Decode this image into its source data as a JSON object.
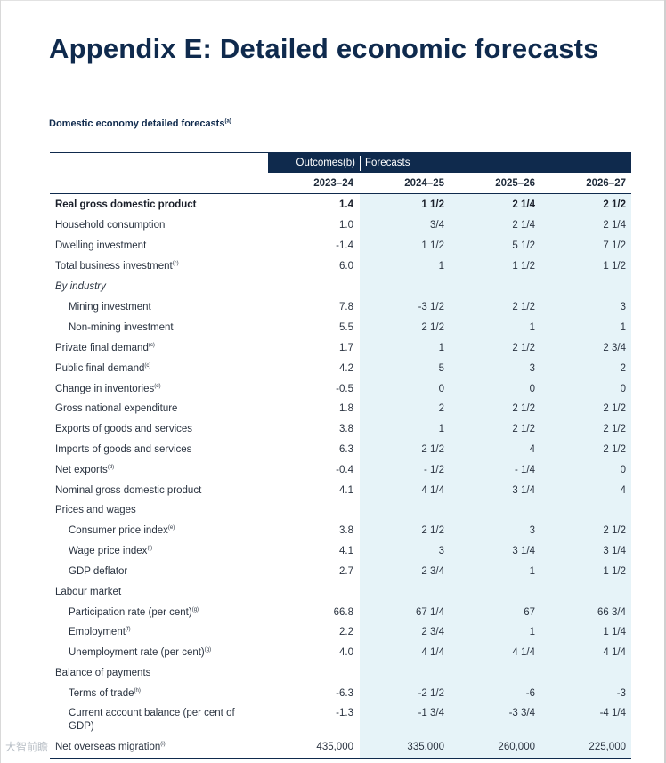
{
  "title": "Appendix E: Detailed economic forecasts",
  "subtitle": "Domestic economy detailed forecasts",
  "subtitle_note": "(a)",
  "header": {
    "outcomes": "Outcomes(b)",
    "forecasts": "Forecasts",
    "years": [
      "2023–24",
      "2024–25",
      "2025–26",
      "2026–27"
    ]
  },
  "rows": [
    {
      "label": "Real gross domestic product",
      "note": "",
      "style": "bold",
      "values": [
        "1.4",
        "1 1/2",
        "2 1/4",
        "2 1/2"
      ]
    },
    {
      "label": "Household consumption",
      "note": "",
      "style": "",
      "values": [
        "1.0",
        "3/4",
        "2 1/4",
        "2 1/4"
      ]
    },
    {
      "label": "Dwelling investment",
      "note": "",
      "style": "",
      "values": [
        "-1.4",
        "1 1/2",
        "5 1/2",
        "7 1/2"
      ]
    },
    {
      "label": "Total business investment",
      "note": "(c)",
      "style": "",
      "values": [
        "6.0",
        "1",
        "1 1/2",
        "1 1/2"
      ]
    },
    {
      "label": "By industry",
      "note": "",
      "style": "italic",
      "values": [
        "",
        "",
        "",
        ""
      ]
    },
    {
      "label": "Mining investment",
      "note": "",
      "style": "indent",
      "values": [
        "7.8",
        "-3 1/2",
        "2 1/2",
        "3"
      ]
    },
    {
      "label": "Non-mining investment",
      "note": "",
      "style": "indent",
      "values": [
        "5.5",
        "2 1/2",
        "1",
        "1"
      ]
    },
    {
      "label": "Private final demand",
      "note": "(c)",
      "style": "",
      "values": [
        "1.7",
        "1",
        "2 1/2",
        "2 3/4"
      ]
    },
    {
      "label": "Public final demand",
      "note": "(c)",
      "style": "",
      "values": [
        "4.2",
        "5",
        "3",
        "2"
      ]
    },
    {
      "label": "Change in inventories",
      "note": "(d)",
      "style": "",
      "values": [
        "-0.5",
        "0",
        "0",
        "0"
      ]
    },
    {
      "label": "Gross national expenditure",
      "note": "",
      "style": "",
      "values": [
        "1.8",
        "2",
        "2 1/2",
        "2 1/2"
      ]
    },
    {
      "label": "Exports of goods and services",
      "note": "",
      "style": "",
      "values": [
        "3.8",
        "1",
        "2 1/2",
        "2 1/2"
      ]
    },
    {
      "label": "Imports of goods and services",
      "note": "",
      "style": "",
      "values": [
        "6.3",
        "2 1/2",
        "4",
        "2 1/2"
      ]
    },
    {
      "label": "Net exports",
      "note": "(d)",
      "style": "",
      "values": [
        "-0.4",
        "- 1/2",
        "- 1/4",
        "0"
      ]
    },
    {
      "label": "Nominal gross domestic product",
      "note": "",
      "style": "",
      "values": [
        "4.1",
        "4 1/4",
        "3 1/4",
        "4"
      ]
    },
    {
      "label": "Prices and wages",
      "note": "",
      "style": "",
      "values": [
        "",
        "",
        "",
        ""
      ]
    },
    {
      "label": "Consumer price index",
      "note": "(e)",
      "style": "indent",
      "values": [
        "3.8",
        "2 1/2",
        "3",
        "2 1/2"
      ]
    },
    {
      "label": "Wage price index",
      "note": "(f)",
      "style": "indent",
      "values": [
        "4.1",
        "3",
        "3 1/4",
        "3 1/4"
      ]
    },
    {
      "label": "GDP deflator",
      "note": "",
      "style": "indent",
      "values": [
        "2.7",
        "2 3/4",
        "1",
        "1 1/2"
      ]
    },
    {
      "label": "Labour market",
      "note": "",
      "style": "",
      "values": [
        "",
        "",
        "",
        ""
      ]
    },
    {
      "label": "Participation rate (per cent)",
      "note": "(g)",
      "style": "indent",
      "values": [
        "66.8",
        "67 1/4",
        "67",
        "66 3/4"
      ]
    },
    {
      "label": "Employment",
      "note": "(f)",
      "style": "indent",
      "values": [
        "2.2",
        "2 3/4",
        "1",
        "1 1/4"
      ]
    },
    {
      "label": "Unemployment rate (per cent)",
      "note": "(g)",
      "style": "indent",
      "values": [
        "4.0",
        "4 1/4",
        "4 1/4",
        "4 1/4"
      ]
    },
    {
      "label": "Balance of payments",
      "note": "",
      "style": "",
      "values": [
        "",
        "",
        "",
        ""
      ]
    },
    {
      "label": "Terms of trade",
      "note": "(h)",
      "style": "indent",
      "values": [
        "-6.3",
        "-2 1/2",
        "-6",
        "-3"
      ]
    },
    {
      "label": "Current account balance (per cent of GDP)",
      "note": "",
      "style": "indent tall",
      "values": [
        "-1.3",
        "-1 3/4",
        "-3 3/4",
        "-4 1/4"
      ]
    },
    {
      "label": "Net overseas migration",
      "note": "(i)",
      "style": "",
      "values": [
        "435,000",
        "335,000",
        "260,000",
        "225,000"
      ]
    }
  ],
  "watermark": "大智前瞻"
}
